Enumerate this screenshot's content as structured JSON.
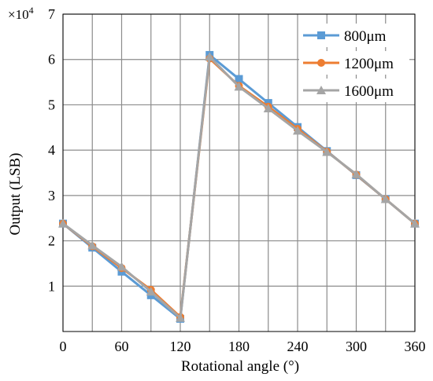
{
  "chart_data": {
    "type": "line",
    "title": "",
    "xlabel": "Rotational angle (°)",
    "ylabel": "Output (LSB)",
    "y_multiplier_base": "×10",
    "y_multiplier_exp": "4",
    "xlim": [
      0,
      360
    ],
    "ylim": [
      0,
      7
    ],
    "x_ticks": [
      0,
      60,
      120,
      180,
      240,
      300,
      360
    ],
    "y_ticks": [
      1,
      2,
      3,
      4,
      5,
      6,
      7
    ],
    "x_minor_grid": [
      30,
      90,
      150,
      210,
      270,
      330
    ],
    "grid": true,
    "legend_position": "top-right",
    "series": [
      {
        "name": "800μm",
        "color": "#5B9BD5",
        "marker": "square",
        "points": [
          [
            0,
            2.38
          ],
          [
            30,
            1.85
          ],
          [
            60,
            1.32
          ],
          [
            90,
            0.8
          ],
          [
            120,
            0.28
          ],
          [
            150,
            6.1
          ],
          [
            180,
            5.57
          ],
          [
            210,
            5.04
          ],
          [
            240,
            4.51
          ],
          [
            270,
            3.98
          ],
          [
            300,
            3.45
          ],
          [
            330,
            2.92
          ],
          [
            360,
            2.38
          ]
        ]
      },
      {
        "name": "1200μm",
        "color": "#ED7D31",
        "marker": "circle",
        "points": [
          [
            0,
            2.38
          ],
          [
            30,
            1.88
          ],
          [
            60,
            1.4
          ],
          [
            90,
            0.92
          ],
          [
            120,
            0.32
          ],
          [
            150,
            6.02
          ],
          [
            180,
            5.42
          ],
          [
            210,
            4.96
          ],
          [
            240,
            4.47
          ],
          [
            270,
            3.97
          ],
          [
            300,
            3.46
          ],
          [
            330,
            2.92
          ],
          [
            360,
            2.38
          ]
        ]
      },
      {
        "name": "1600μm",
        "color": "#A5A5A5",
        "marker": "triangle",
        "points": [
          [
            0,
            2.38
          ],
          [
            30,
            1.9
          ],
          [
            60,
            1.43
          ],
          [
            90,
            0.88
          ],
          [
            120,
            0.3
          ],
          [
            150,
            6.06
          ],
          [
            180,
            5.4
          ],
          [
            210,
            4.92
          ],
          [
            240,
            4.43
          ],
          [
            270,
            3.96
          ],
          [
            300,
            3.47
          ],
          [
            330,
            2.92
          ],
          [
            360,
            2.38
          ]
        ]
      }
    ]
  }
}
